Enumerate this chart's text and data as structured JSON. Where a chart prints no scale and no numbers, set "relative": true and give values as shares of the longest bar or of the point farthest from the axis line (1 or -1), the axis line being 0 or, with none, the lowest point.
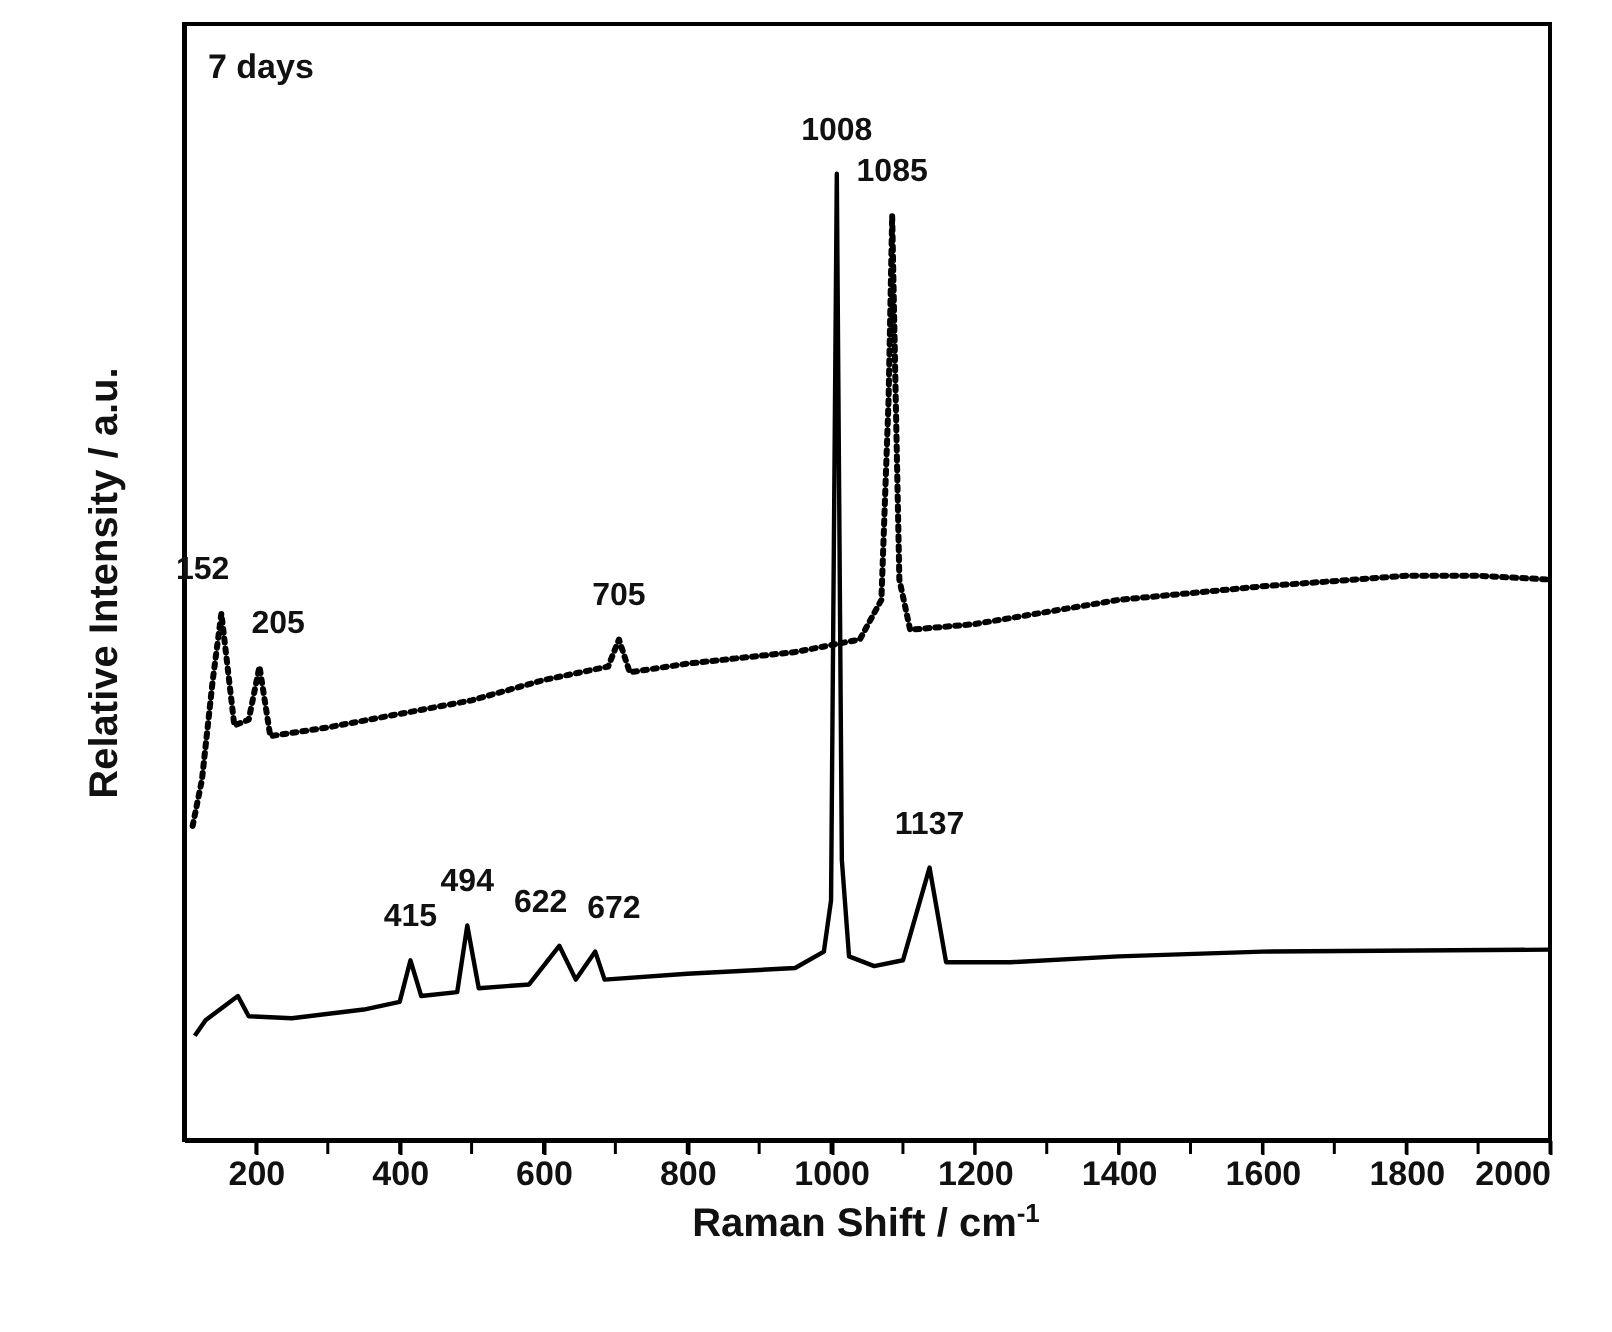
{
  "chart_data": {
    "type": "line",
    "relative": true,
    "xlabel": "Raman Shift / cm$^{-1}$",
    "ylabel": "Relative Intensity / a.u.",
    "xlim": [
      100,
      2000
    ],
    "xticks": [
      200,
      {
        "value": 300,
        "label": null
      },
      400,
      {
        "value": 500,
        "label": null
      },
      600,
      {
        "value": 700,
        "label": null
      },
      800,
      {
        "value": 900,
        "label": null
      },
      1000,
      {
        "value": 1100,
        "label": null
      },
      1200,
      {
        "value": 1300,
        "label": null
      },
      1400,
      {
        "value": 1500,
        "label": null
      },
      1600,
      {
        "value": 1700,
        "label": null
      },
      1800,
      {
        "value": 1900,
        "label": null
      },
      2000
    ],
    "grid": false,
    "tick_labels": "x",
    "series": [
      {
        "color": "#000000",
        "line_style": "dotted",
        "x": [
          112,
          125,
          140,
          152,
          170,
          190,
          205,
          220,
          300,
          400,
          500,
          600,
          690,
          705,
          720,
          800,
          950,
          1040,
          1070,
          1080,
          1085,
          1090,
          1095,
          1110,
          1200,
          1400,
          1600,
          1800,
          1900,
          2000
        ],
        "values": [
          0.325,
          0.373,
          0.476,
          0.545,
          0.429,
          0.435,
          0.49,
          0.418,
          0.427,
          0.441,
          0.455,
          0.476,
          0.49,
          0.518,
          0.484,
          0.493,
          0.505,
          0.518,
          0.559,
          0.766,
          0.957,
          0.766,
          0.58,
          0.528,
          0.534,
          0.559,
          0.573,
          0.584,
          0.584,
          0.58
        ]
      },
      {
        "color": "#000000",
        "line_style": "solid",
        "x": [
          115,
          130,
          175,
          190,
          250,
          350,
          400,
          415,
          430,
          480,
          494,
          510,
          580,
          622,
          645,
          672,
          685,
          800,
          950,
          990,
          1000,
          1008,
          1015,
          1025,
          1060,
          1100,
          1137,
          1160,
          1250,
          1400,
          1600,
          2000
        ],
        "values": [
          0.108,
          0.124,
          0.149,
          0.128,
          0.126,
          0.135,
          0.143,
          0.186,
          0.149,
          0.153,
          0.222,
          0.157,
          0.161,
          0.201,
          0.166,
          0.195,
          0.166,
          0.172,
          0.178,
          0.195,
          0.248,
          1.0,
          0.29,
          0.19,
          0.18,
          0.186,
          0.282,
          0.184,
          0.184,
          0.19,
          0.195,
          0.197
        ]
      }
    ],
    "annotations": [
      "7 days",
      {
        "text": "152",
        "x": 152,
        "y": 0.545
      },
      {
        "text": "205",
        "x": 205,
        "y": 0.49
      },
      {
        "text": "705",
        "x": 705,
        "y": 0.518
      },
      {
        "text": "1008",
        "x": 1008,
        "y": 1.0
      },
      {
        "text": "1085",
        "x": 1085,
        "y": 0.957
      },
      {
        "text": "415",
        "x": 415,
        "y": 0.186
      },
      {
        "text": "494",
        "x": 494,
        "y": 0.222
      },
      {
        "text": "622",
        "x": 622,
        "y": 0.201
      },
      {
        "text": "672",
        "x": 672,
        "y": 0.195
      },
      {
        "text": "1137",
        "x": 1137,
        "y": 0.282
      }
    ]
  }
}
